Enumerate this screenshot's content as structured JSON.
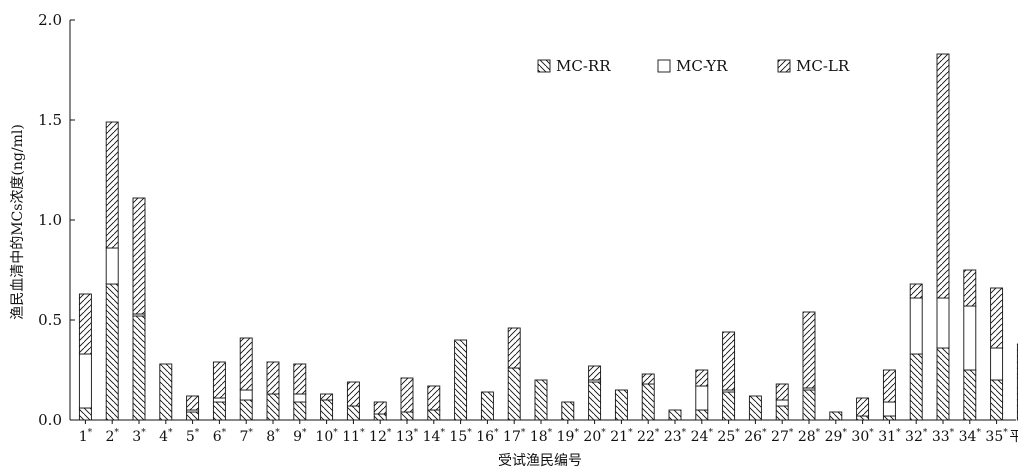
{
  "chart_data": {
    "type": "bar",
    "stacked": true,
    "title": "",
    "xlabel": "受试渔民编号",
    "ylabel": "渔民血清中的MCs浓度(ng/ml)",
    "ylim": [
      0,
      2.0
    ],
    "yticks": [
      "0.0",
      "0.5",
      "1.0",
      "1.5",
      "2.0"
    ],
    "ytick_values": [
      0,
      0.5,
      1.0,
      1.5,
      2.0
    ],
    "grid": false,
    "legend_position": "top-right",
    "categories": [
      "1",
      "2",
      "3",
      "4",
      "5",
      "6",
      "7",
      "8",
      "9",
      "10",
      "11",
      "12",
      "13",
      "14",
      "15",
      "16",
      "17",
      "18",
      "19",
      "20",
      "21",
      "22",
      "23",
      "24",
      "25",
      "26",
      "27",
      "28",
      "29",
      "30",
      "31",
      "32",
      "33",
      "34",
      "35",
      "平均"
    ],
    "category_marks": [
      "*",
      "*",
      "*",
      "*",
      "*",
      "*",
      "*",
      "*",
      "*",
      "*",
      "*",
      "*",
      "*",
      "*",
      "*",
      "*",
      "*",
      "*",
      "*",
      "*",
      "*",
      "*",
      "*",
      "*",
      "*",
      "*",
      "*",
      "*",
      "*",
      "*",
      "*",
      "*",
      "*",
      "*",
      "*",
      ""
    ],
    "series": [
      {
        "name": "MC-RR",
        "pattern": "backslash-hatch",
        "values": [
          0.06,
          0.68,
          0.52,
          0.28,
          0.04,
          0.09,
          0.1,
          0.13,
          0.09,
          0.1,
          0.07,
          0.03,
          0.04,
          0.05,
          0.4,
          0.14,
          0.26,
          0.2,
          0.09,
          0.19,
          0.15,
          0.18,
          0.05,
          0.05,
          0.14,
          0.12,
          0.07,
          0.15,
          0.04,
          0.02,
          0.02,
          0.33,
          0.36,
          0.25,
          0.2,
          0.16
        ]
      },
      {
        "name": "MC-YR",
        "pattern": "open",
        "values": [
          0.27,
          0.18,
          0.01,
          0.0,
          0.01,
          0.02,
          0.05,
          0.0,
          0.04,
          0.0,
          0.0,
          0.0,
          0.0,
          0.0,
          0.0,
          0.0,
          0.0,
          0.0,
          0.0,
          0.01,
          0.0,
          0.0,
          0.0,
          0.12,
          0.01,
          0.0,
          0.03,
          0.01,
          0.0,
          0.0,
          0.07,
          0.28,
          0.25,
          0.32,
          0.16,
          0.05
        ]
      },
      {
        "name": "MC-LR",
        "pattern": "slash-hatch",
        "values": [
          0.3,
          0.63,
          0.58,
          0.0,
          0.07,
          0.18,
          0.26,
          0.16,
          0.15,
          0.03,
          0.12,
          0.06,
          0.17,
          0.12,
          0.0,
          0.0,
          0.2,
          0.0,
          0.0,
          0.07,
          0.0,
          0.05,
          0.0,
          0.08,
          0.29,
          0.0,
          0.08,
          0.38,
          0.0,
          0.09,
          0.16,
          0.07,
          1.22,
          0.18,
          0.3,
          0.17
        ]
      }
    ]
  }
}
